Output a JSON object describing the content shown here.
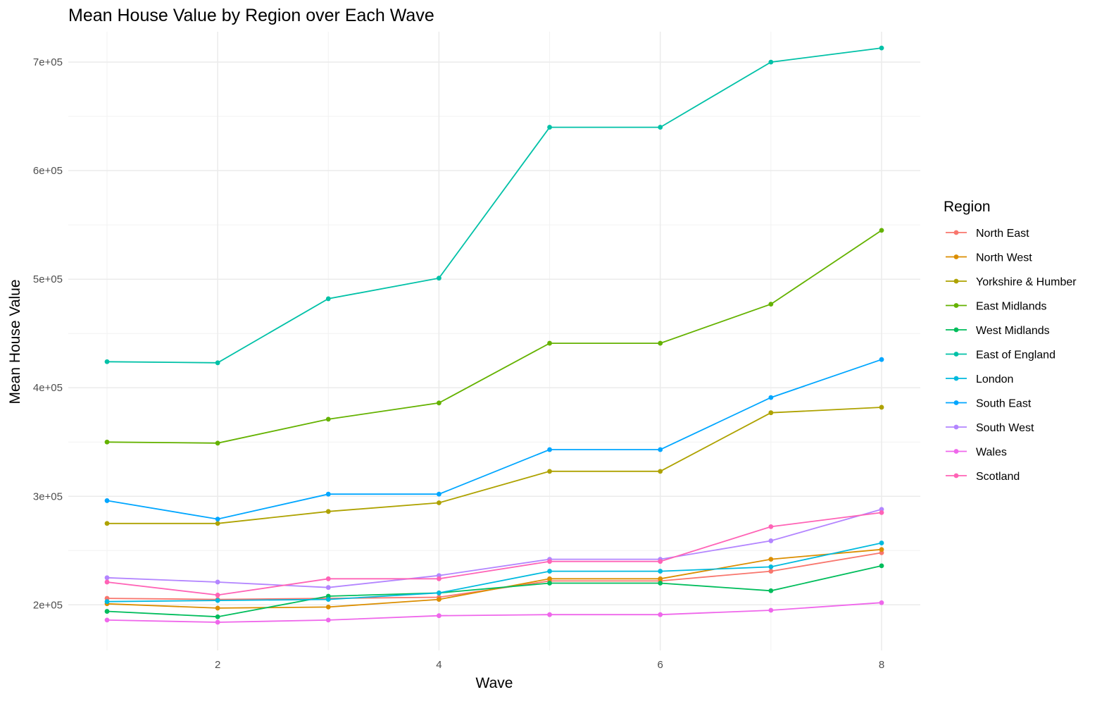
{
  "chart_data": {
    "type": "line",
    "title": "Mean House Value by Region over Each Wave",
    "xlabel": "Wave",
    "ylabel": "Mean House Value",
    "x": [
      1,
      2,
      3,
      4,
      5,
      6,
      7,
      8
    ],
    "xlim": [
      0.65,
      8.35
    ],
    "ylim": [
      158000,
      728000
    ],
    "x_ticks": [
      2,
      4,
      6,
      8
    ],
    "x_tick_labels": [
      "2",
      "4",
      "6",
      "8"
    ],
    "y_ticks": [
      200000,
      300000,
      400000,
      500000,
      600000,
      700000
    ],
    "y_tick_labels": [
      "2e+05",
      "3e+05",
      "4e+05",
      "5e+05",
      "6e+05",
      "7e+05"
    ],
    "grid": true,
    "legend_title": "Region",
    "legend_position": "right",
    "series": [
      {
        "name": "North East",
        "color": "#F8766D",
        "values": [
          206000,
          205000,
          206000,
          207000,
          222000,
          222000,
          231000,
          248000
        ]
      },
      {
        "name": "North West",
        "color": "#DB8E00",
        "values": [
          201000,
          197000,
          198000,
          205000,
          224000,
          224000,
          242000,
          251000
        ]
      },
      {
        "name": "Yorkshire & Humber",
        "color": "#AEA200",
        "values": [
          275000,
          275000,
          286000,
          294000,
          323000,
          323000,
          377000,
          382000
        ]
      },
      {
        "name": "East Midlands",
        "color": "#64B200",
        "values": [
          350000,
          349000,
          371000,
          386000,
          441000,
          441000,
          477000,
          545000
        ]
      },
      {
        "name": "West Midlands",
        "color": "#00BD5C",
        "values": [
          194000,
          189000,
          208000,
          211000,
          220000,
          220000,
          213000,
          236000
        ]
      },
      {
        "name": "East of England",
        "color": "#00C1A7",
        "values": [
          424000,
          423000,
          482000,
          501000,
          640000,
          640000,
          700000,
          713000
        ]
      },
      {
        "name": "London",
        "color": "#00BADE",
        "values": [
          203000,
          204000,
          205000,
          211000,
          231000,
          231000,
          235000,
          257000
        ]
      },
      {
        "name": "South East",
        "color": "#00A6FF",
        "values": [
          296000,
          279000,
          302000,
          302000,
          343000,
          343000,
          391000,
          426000
        ]
      },
      {
        "name": "South West",
        "color": "#B385FF",
        "values": [
          225000,
          221000,
          216000,
          227000,
          242000,
          242000,
          259000,
          288000
        ]
      },
      {
        "name": "Wales",
        "color": "#EF67EB",
        "values": [
          186000,
          184000,
          186000,
          190000,
          191000,
          191000,
          195000,
          202000
        ]
      },
      {
        "name": "Scotland",
        "color": "#FF63B6",
        "values": [
          221000,
          209000,
          224000,
          224000,
          240000,
          240000,
          272000,
          285000
        ]
      }
    ]
  }
}
